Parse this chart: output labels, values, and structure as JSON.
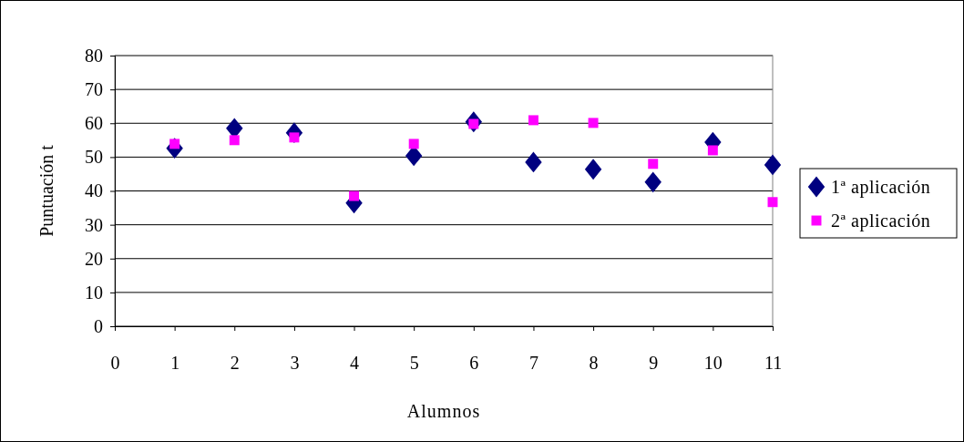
{
  "chart_data": {
    "type": "scatter",
    "xlabel": "Alumnos",
    "ylabel": "Puntuación t",
    "xlim": [
      0,
      11
    ],
    "xticks": [
      0,
      1,
      2,
      3,
      4,
      5,
      6,
      7,
      8,
      9,
      10,
      11
    ],
    "ylim": [
      0,
      80
    ],
    "yticks": [
      0,
      10,
      20,
      30,
      40,
      50,
      60,
      70,
      80
    ],
    "x": [
      1,
      2,
      3,
      4,
      5,
      6,
      7,
      8,
      9,
      10,
      11
    ],
    "series": [
      {
        "name": "1ª aplicación",
        "color": "#000080",
        "marker": "diamond",
        "values": [
          52.6,
          58.5,
          57.2,
          36.4,
          50.4,
          60.4,
          48.5,
          46.4,
          42.6,
          54.4,
          47.7
        ]
      },
      {
        "name": "2ª aplicación",
        "color": "#ff00ff",
        "marker": "square",
        "values": [
          53.9,
          55,
          55.8,
          38.5,
          53.9,
          59.8,
          60.9,
          60.1,
          48,
          52,
          36.7
        ]
      }
    ],
    "grid": "y",
    "legend": "right"
  }
}
